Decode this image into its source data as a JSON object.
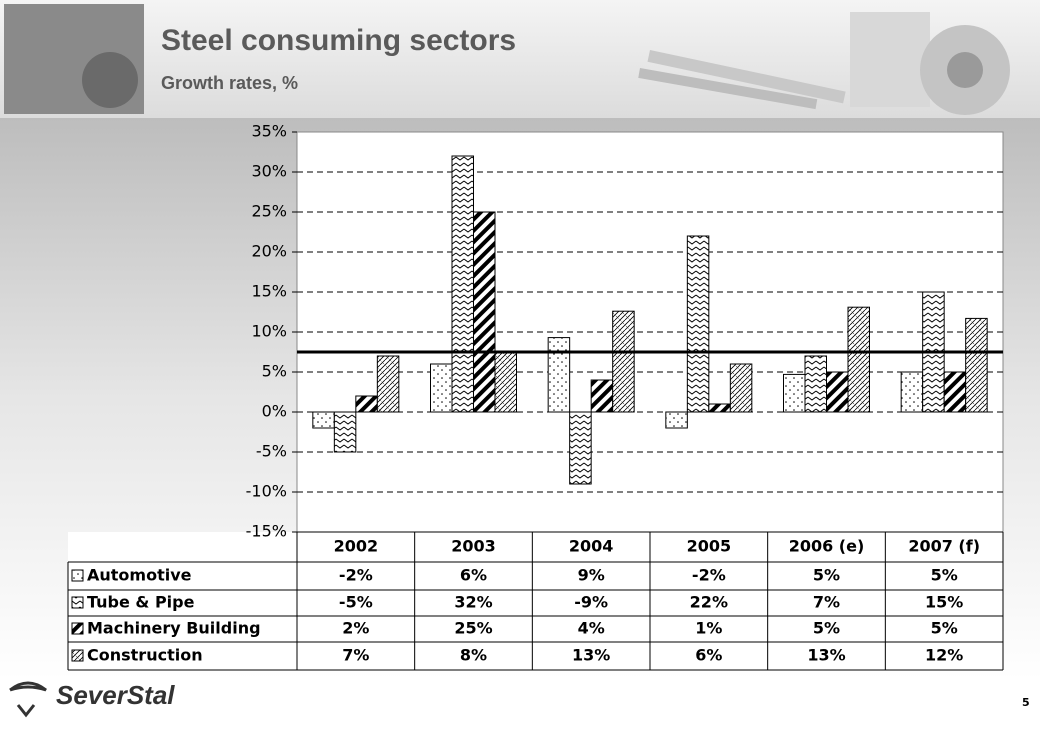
{
  "chart_data": {
    "type": "bar",
    "title": "Steel consuming sectors",
    "subtitle": "Growth rates, %",
    "categories": [
      "2002",
      "2003",
      "2004",
      "2005",
      "2006 (e)",
      "2007 (f)"
    ],
    "series": [
      {
        "name": "Automotive",
        "pattern": "dots",
        "color": "#000000",
        "values": [
          -2,
          6,
          9.3,
          -2,
          4.7,
          5
        ],
        "value_labels": [
          "-2%",
          "6%",
          "9%",
          "-2%",
          "5%",
          "5%"
        ]
      },
      {
        "name": "Tube & Pipe",
        "pattern": "zigzag",
        "color": "#000000",
        "values": [
          -5,
          32,
          -9,
          22,
          7,
          15
        ],
        "value_labels": [
          "-5%",
          "32%",
          "-9%",
          "22%",
          "7%",
          "15%"
        ]
      },
      {
        "name": "Machinery Building",
        "pattern": "stripes",
        "color": "#000000",
        "values": [
          2,
          25,
          4,
          1,
          5,
          5
        ],
        "value_labels": [
          "2%",
          "25%",
          "4%",
          "1%",
          "5%",
          "5%"
        ]
      },
      {
        "name": "Construction",
        "pattern": "weave",
        "color": "#000000",
        "values": [
          7,
          7.5,
          12.6,
          6,
          13.1,
          11.7
        ],
        "value_labels": [
          "7%",
          "8%",
          "13%",
          "6%",
          "13%",
          "12%"
        ]
      }
    ],
    "reference_line": 7.5,
    "ylim": [
      -15,
      35
    ],
    "yticks": [
      {
        "value": -15,
        "label": "-15%"
      },
      {
        "value": -10,
        "label": "-10%"
      },
      {
        "value": -5,
        "label": "-5%"
      },
      {
        "value": 0,
        "label": "0%"
      },
      {
        "value": 5,
        "label": "5%"
      },
      {
        "value": 10,
        "label": "10%"
      },
      {
        "value": 15,
        "label": "15%"
      },
      {
        "value": 20,
        "label": "20%"
      },
      {
        "value": 25,
        "label": "25%"
      },
      {
        "value": 30,
        "label": "30%"
      },
      {
        "value": 35,
        "label": "35%"
      }
    ],
    "grid": true
  },
  "footer": {
    "logo": "SeverStal",
    "page": "5"
  }
}
